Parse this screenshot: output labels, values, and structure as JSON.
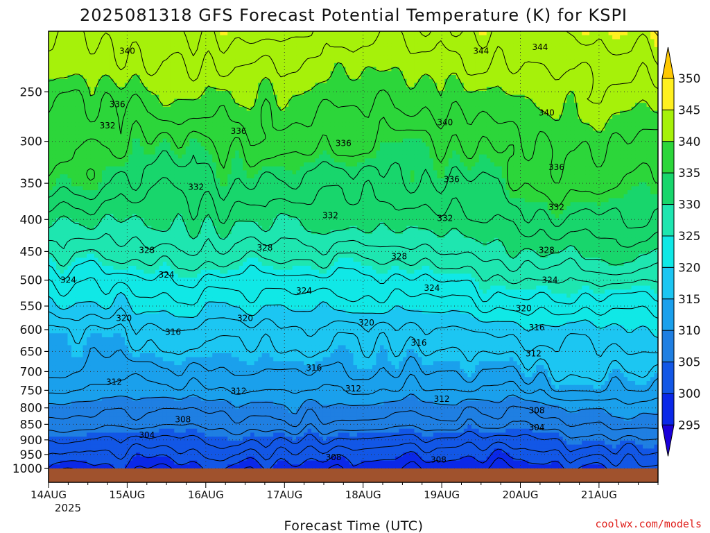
{
  "chart_data": {
    "type": "heatmap",
    "title": "2025081318 GFS Forecast Potential Temperature (K) for KSPI",
    "xlabel": "Forecast Time (UTC)",
    "credit": "coolwx.com/models",
    "x_ticks": [
      "14AUG",
      "15AUG",
      "16AUG",
      "17AUG",
      "18AUG",
      "19AUG",
      "20AUG",
      "21AUG"
    ],
    "x_year": "2025",
    "y_ticks": [
      250,
      300,
      350,
      400,
      450,
      500,
      550,
      600,
      650,
      700,
      750,
      800,
      850,
      900,
      950,
      1000
    ],
    "y_range_hPa": [
      1000,
      200
    ],
    "y_scale": "log-pressure",
    "colorbar_levels": [
      295,
      300,
      305,
      310,
      315,
      320,
      325,
      330,
      335,
      340,
      345,
      350
    ],
    "colorbar_colors": {
      "below_295": "#1a00d8",
      "295-300": "#0a28e8",
      "300-305": "#1257e6",
      "305-310": "#1f7fe2",
      "310-315": "#1aa0ec",
      "315-320": "#1cc6f2",
      "320-325": "#10e8e6",
      "325-330": "#1ee6b0",
      "330-335": "#18d66c",
      "335-340": "#2cd63a",
      "340-345": "#a6f10a",
      "345-350": "#fff020",
      "above_350": "#ffc800"
    },
    "ground_color": "#a0522d",
    "contour_labels": [
      {
        "value": "340",
        "time": "14AUG +1d",
        "pressure": 215
      },
      {
        "value": "344",
        "time": "19AUG +12h",
        "pressure": 215
      },
      {
        "value": "344",
        "time": "20AUG +6h",
        "pressure": 212
      },
      {
        "value": "336",
        "time": "15AUG -3h",
        "pressure": 262
      },
      {
        "value": "332",
        "time": "14AUG +18h",
        "pressure": 283
      },
      {
        "value": "336",
        "time": "16AUG +10h",
        "pressure": 289
      },
      {
        "value": "336",
        "time": "18AUG -6h",
        "pressure": 302
      },
      {
        "value": "340",
        "time": "19AUG +1h",
        "pressure": 280
      },
      {
        "value": "340",
        "time": "20AUG +8h",
        "pressure": 270
      },
      {
        "value": "336",
        "time": "20AUG +11h",
        "pressure": 330
      },
      {
        "value": "336",
        "time": "19AUG +3h",
        "pressure": 345
      },
      {
        "value": "332",
        "time": "16AUG -3h",
        "pressure": 355
      },
      {
        "value": "332",
        "time": "17AUG +14h",
        "pressure": 394
      },
      {
        "value": "332",
        "time": "19AUG +1h",
        "pressure": 398
      },
      {
        "value": "332",
        "time": "20AUG +11h",
        "pressure": 382
      },
      {
        "value": "328",
        "time": "15AUG +6h",
        "pressure": 448
      },
      {
        "value": "328",
        "time": "16AUG +18h",
        "pressure": 444
      },
      {
        "value": "328",
        "time": "18AUG +11h",
        "pressure": 458
      },
      {
        "value": "328",
        "time": "20AUG +8h",
        "pressure": 448
      },
      {
        "value": "324",
        "time": "14AUG +6h",
        "pressure": 500
      },
      {
        "value": "324",
        "time": "15AUG +12h",
        "pressure": 490
      },
      {
        "value": "324",
        "time": "17AUG +6h",
        "pressure": 520
      },
      {
        "value": "324",
        "time": "18AUG +21h",
        "pressure": 515
      },
      {
        "value": "324",
        "time": "20AUG +9h",
        "pressure": 500
      },
      {
        "value": "320",
        "time": "14AUG +23h",
        "pressure": 575
      },
      {
        "value": "320",
        "time": "16AUG +12h",
        "pressure": 575
      },
      {
        "value": "320",
        "time": "18AUG +1h",
        "pressure": 585
      },
      {
        "value": "320",
        "time": "20AUG +1h",
        "pressure": 555
      },
      {
        "value": "316",
        "time": "15AUG +14h",
        "pressure": 605
      },
      {
        "value": "316",
        "time": "18AUG +17h",
        "pressure": 630
      },
      {
        "value": "316",
        "time": "20AUG +5h",
        "pressure": 595
      },
      {
        "value": "316",
        "time": "17AUG +9h",
        "pressure": 690
      },
      {
        "value": "312",
        "time": "20AUG +4h",
        "pressure": 655
      },
      {
        "value": "312",
        "time": "14AUG +20h",
        "pressure": 728
      },
      {
        "value": "312",
        "time": "16AUG +10h",
        "pressure": 752
      },
      {
        "value": "312",
        "time": "17AUG +21h",
        "pressure": 745
      },
      {
        "value": "312",
        "time": "19AUG +0h",
        "pressure": 775
      },
      {
        "value": "308",
        "time": "15AUG +17h",
        "pressure": 835
      },
      {
        "value": "308",
        "time": "20AUG +5h",
        "pressure": 808
      },
      {
        "value": "304",
        "time": "15AUG +6h",
        "pressure": 885
      },
      {
        "value": "304",
        "time": "20AUG +5h",
        "pressure": 860
      },
      {
        "value": "308",
        "time": "17AUG +15h",
        "pressure": 960
      },
      {
        "value": "308",
        "time": "18AUG +23h",
        "pressure": 968
      }
    ]
  }
}
